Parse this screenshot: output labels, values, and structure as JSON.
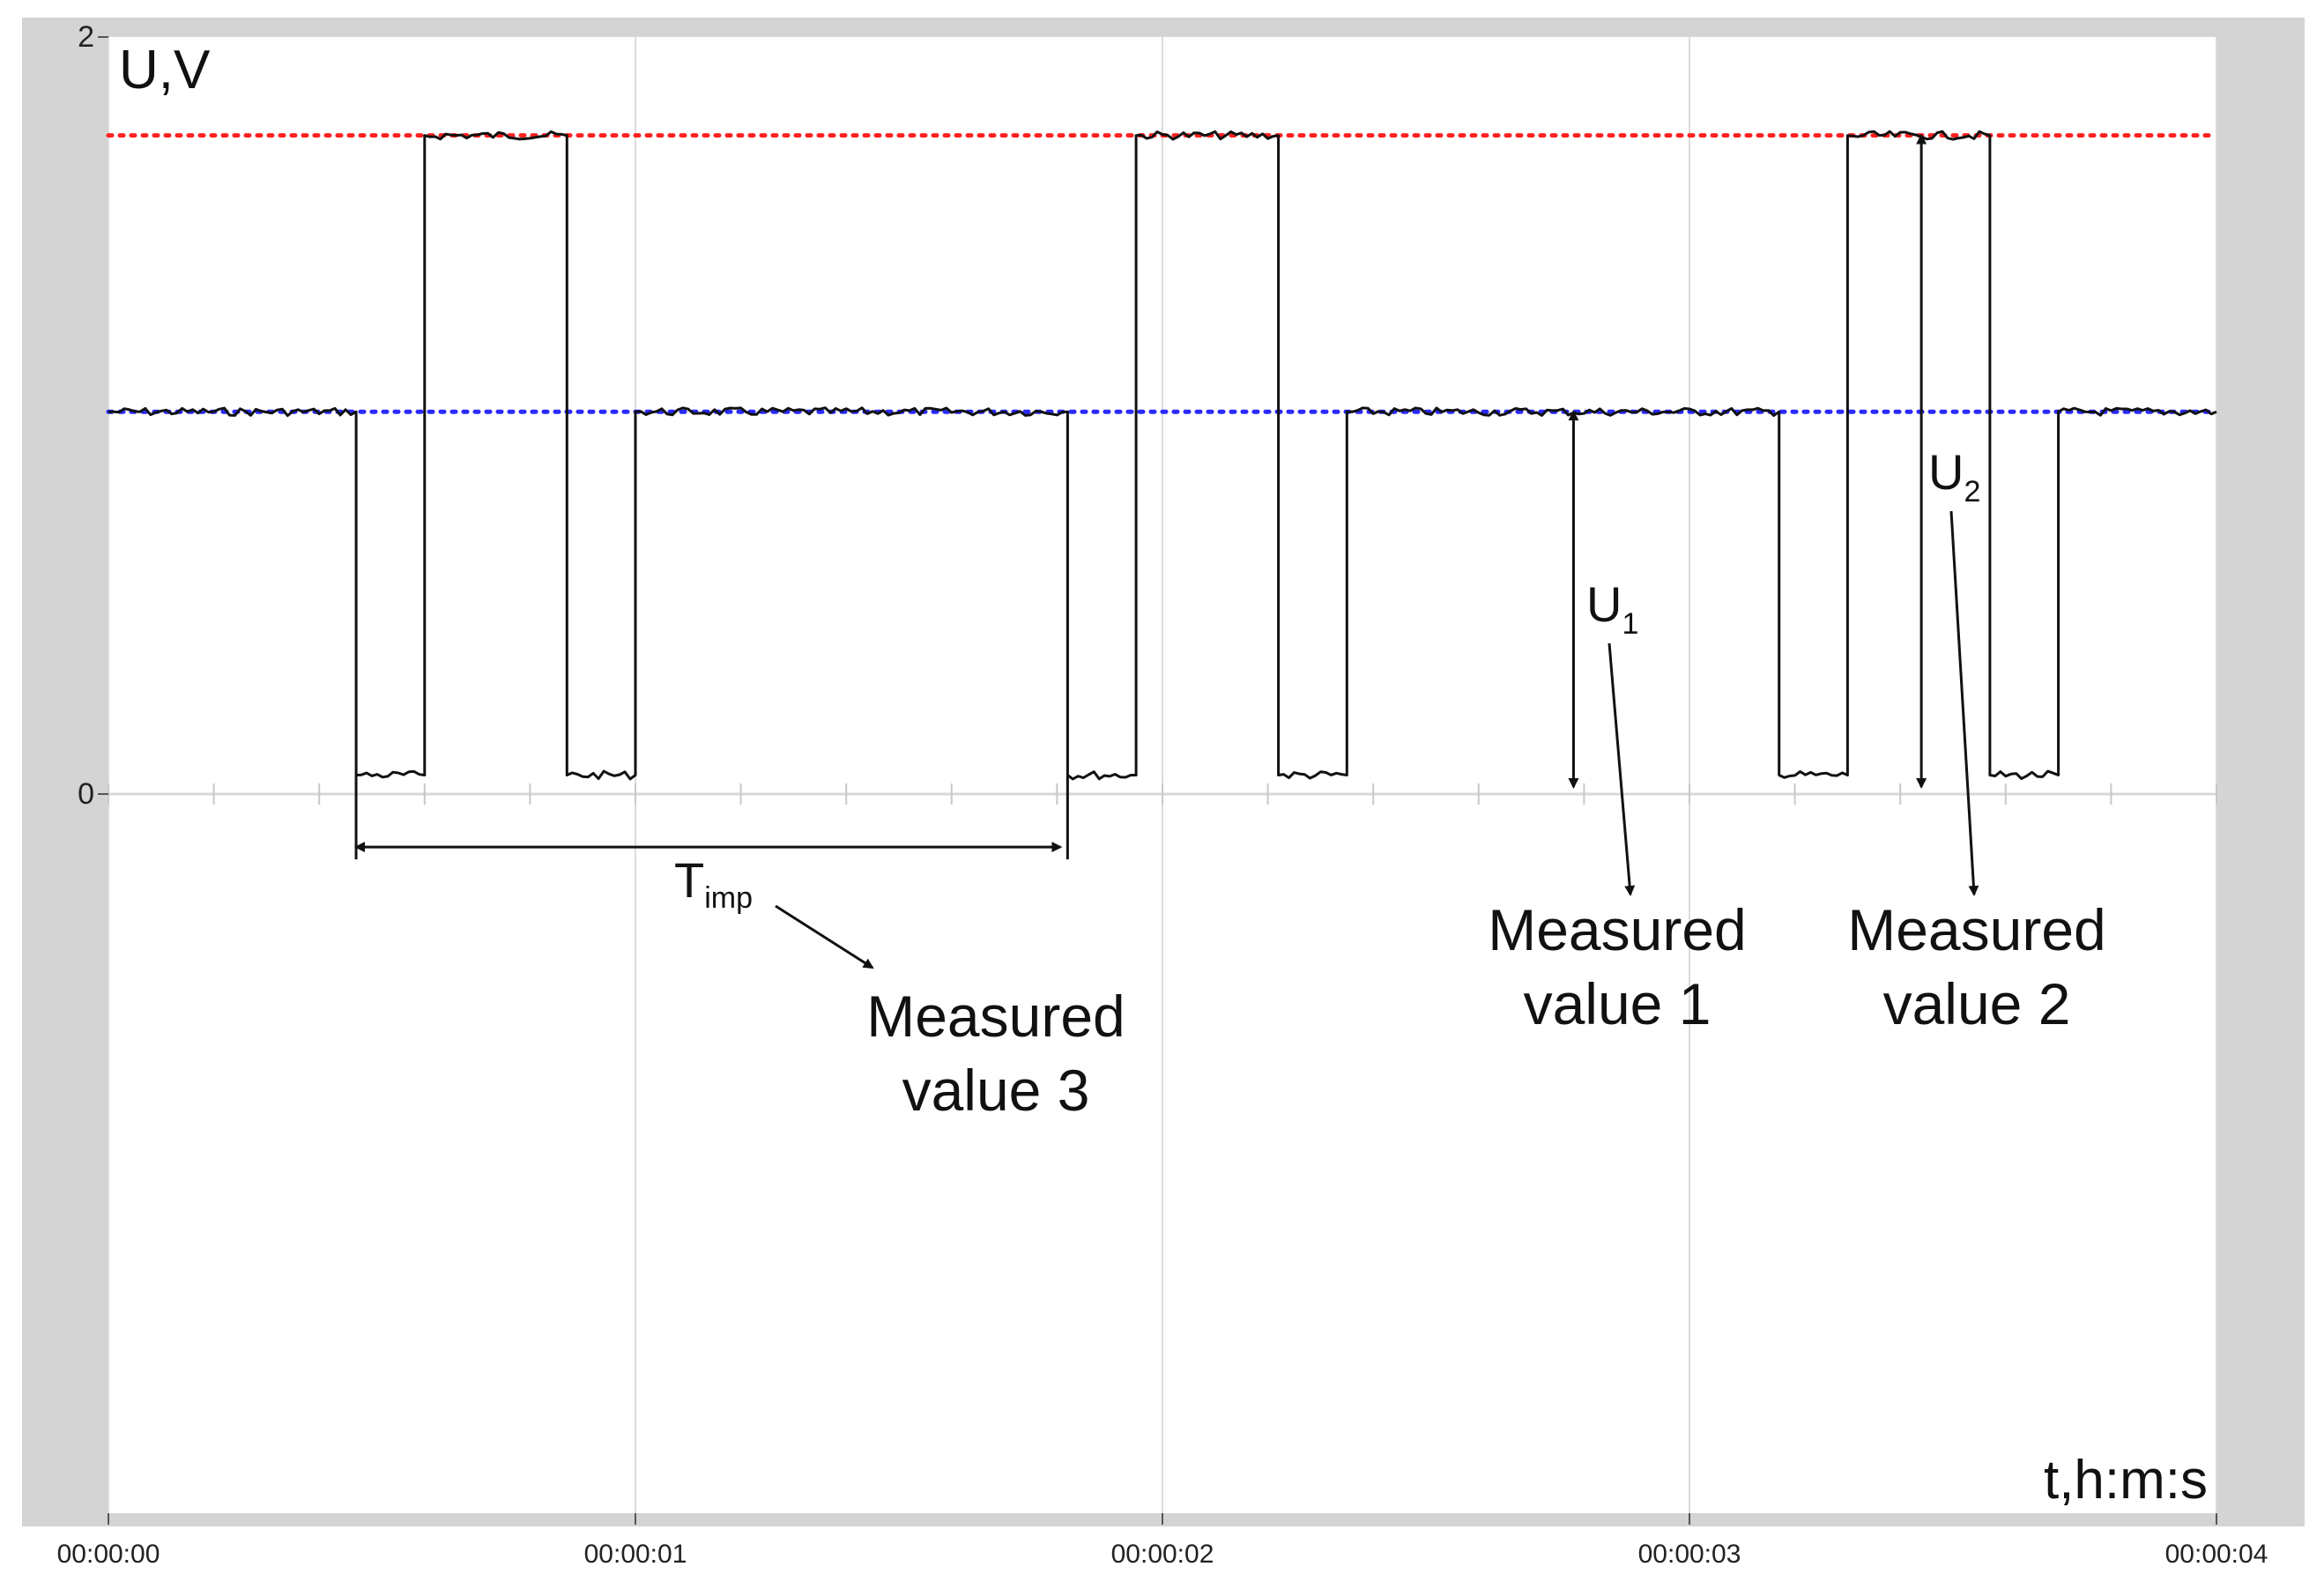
{
  "chart_data": {
    "type": "line",
    "title": "",
    "ylabel": "U,V",
    "xlabel": "t,h:m:s",
    "xlim": [
      0,
      4
    ],
    "ylim": [
      -1.9,
      2
    ],
    "x_ticks": [
      {
        "value": 0,
        "label": "00:00:00"
      },
      {
        "value": 1,
        "label": "00:00:01"
      },
      {
        "value": 2,
        "label": "00:00:02"
      },
      {
        "value": 3,
        "label": "00:00:03"
      },
      {
        "value": 4,
        "label": "00:00:04"
      }
    ],
    "y_ticks": [
      {
        "value": 0,
        "label": "0"
      },
      {
        "value": 2,
        "label": "2"
      }
    ],
    "grid": true,
    "reference_lines": [
      {
        "level": 1.74,
        "color": "#ff2020",
        "style": "dotted"
      },
      {
        "level": 1.01,
        "color": "#2a2aff",
        "style": "dotted"
      }
    ],
    "series": [
      {
        "color": "#111111",
        "x": [
          0,
          0.47,
          0.47,
          0.6,
          0.6,
          0.87,
          0.87,
          1.0,
          1.0,
          1.82,
          1.82,
          1.95,
          1.95,
          2.22,
          2.22,
          2.35,
          2.35,
          3.17,
          3.17,
          3.3,
          3.3,
          3.57,
          3.57,
          3.7,
          3.7,
          4.0
        ],
        "y": [
          1.01,
          1.01,
          0.05,
          0.05,
          1.74,
          1.74,
          0.05,
          0.05,
          1.01,
          1.01,
          0.05,
          0.05,
          1.74,
          1.74,
          0.05,
          0.05,
          1.01,
          1.01,
          0.05,
          0.05,
          1.74,
          1.74,
          0.05,
          0.05,
          1.01,
          1.01
        ]
      }
    ],
    "annotations": {
      "u1": {
        "symbol": "U",
        "sub": "1",
        "x": 2.78,
        "y_from": 1.01,
        "y_to": 0
      },
      "u2": {
        "symbol": "U",
        "sub": "2",
        "x": 3.44,
        "y_from": 1.74,
        "y_to": 0
      },
      "timp": {
        "symbol": "T",
        "sub": "imp",
        "x_from": 0.47,
        "x_to": 1.82,
        "y": -0.14
      },
      "mv1": {
        "line1": "Measured",
        "line2": "value 1"
      },
      "mv2": {
        "line1": "Measured",
        "line2": "value 2"
      },
      "mv3": {
        "line1": "Measured",
        "line2": "value 3"
      }
    }
  }
}
